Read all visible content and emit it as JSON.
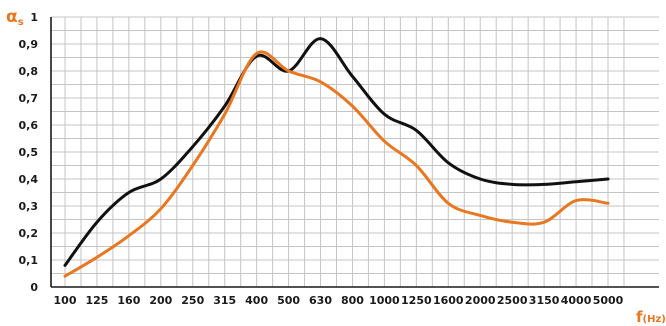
{
  "chart_data": {
    "type": "line",
    "ylabel": "αs",
    "xlabel": "f(Hz)",
    "ylabel_color": "#e87722",
    "xlabel_color": "#e87722",
    "x": [
      "100",
      "125",
      "160",
      "200",
      "250",
      "315",
      "400",
      "500",
      "630",
      "800",
      "1000",
      "1250",
      "1600",
      "2000",
      "2500",
      "3150",
      "4000",
      "5000"
    ],
    "yticks": [
      "0",
      "0,1",
      "0,2",
      "0,3",
      "0,4",
      "0,5",
      "0,6",
      "0,7",
      "0,8",
      "0,9",
      "1"
    ],
    "ylim": [
      0,
      1
    ],
    "grid": true,
    "series": [
      {
        "color": "#111111",
        "values": [
          0.08,
          0.24,
          0.35,
          0.4,
          0.52,
          0.67,
          0.855,
          0.8,
          0.92,
          0.78,
          0.64,
          0.58,
          0.46,
          0.4,
          0.38,
          0.38,
          0.39,
          0.4
        ]
      },
      {
        "color": "#e87722",
        "values": [
          0.04,
          0.11,
          0.19,
          0.29,
          0.45,
          0.64,
          0.865,
          0.8,
          0.76,
          0.67,
          0.54,
          0.45,
          0.31,
          0.265,
          0.24,
          0.24,
          0.32,
          0.31
        ]
      }
    ]
  }
}
